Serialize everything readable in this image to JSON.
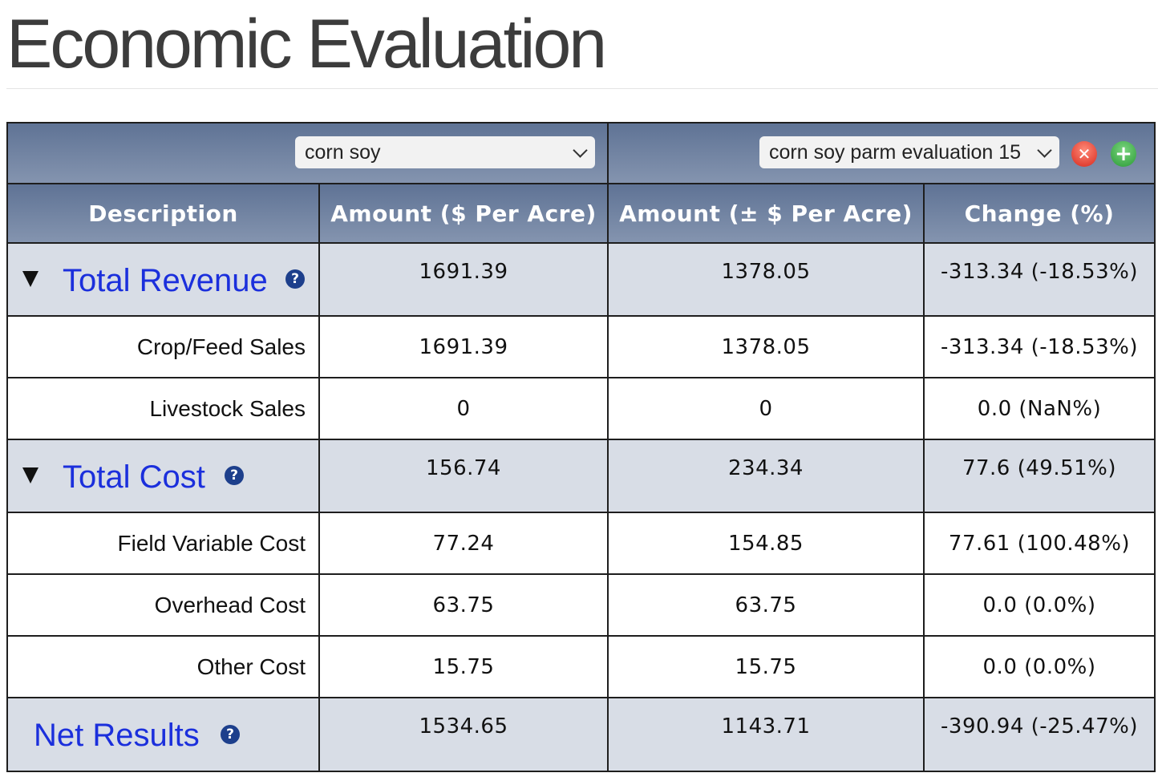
{
  "page": {
    "title": "Economic Evaluation"
  },
  "selectors": {
    "baseline": {
      "value": "corn soy"
    },
    "comparison": {
      "value": "corn soy parm evaluation 15"
    },
    "remove_icon": "close-icon",
    "add_icon": "plus-icon",
    "remove_color": "#d7281c",
    "add_color": "#2b9a36"
  },
  "columns": {
    "description": "Description",
    "amount": "Amount ($ Per Acre)",
    "amount_delta": "Amount (± $ Per Acre)",
    "change": "Change (%)"
  },
  "rows": {
    "total_revenue": {
      "label": "Total Revenue",
      "amount": "1691.39",
      "amount_delta": "1378.05",
      "change": "-313.34 (-18.53%)"
    },
    "crop_feed_sales": {
      "label": "Crop/Feed Sales",
      "amount": "1691.39",
      "amount_delta": "1378.05",
      "change": "-313.34 (-18.53%)"
    },
    "livestock_sales": {
      "label": "Livestock Sales",
      "amount": "0",
      "amount_delta": "0",
      "change": "0.0 (NaN%)"
    },
    "total_cost": {
      "label": "Total Cost",
      "amount": "156.74",
      "amount_delta": "234.34",
      "change": "77.6 (49.51%)"
    },
    "field_variable_cost": {
      "label": "Field Variable Cost",
      "amount": "77.24",
      "amount_delta": "154.85",
      "change": "77.61 (100.48%)"
    },
    "overhead_cost": {
      "label": "Overhead Cost",
      "amount": "63.75",
      "amount_delta": "63.75",
      "change": "0.0 (0.0%)"
    },
    "other_cost": {
      "label": "Other Cost",
      "amount": "15.75",
      "amount_delta": "15.75",
      "change": "0.0 (0.0%)"
    },
    "net_results": {
      "label": "Net Results",
      "amount": "1534.65",
      "amount_delta": "1143.71",
      "change": "-390.94 (-25.47%)"
    }
  },
  "help_glyph": "?",
  "colors": {
    "header": "#6f83a3",
    "group_row": "#d8dde6",
    "link": "#1b2fdc",
    "help": "#1d3f8c"
  }
}
